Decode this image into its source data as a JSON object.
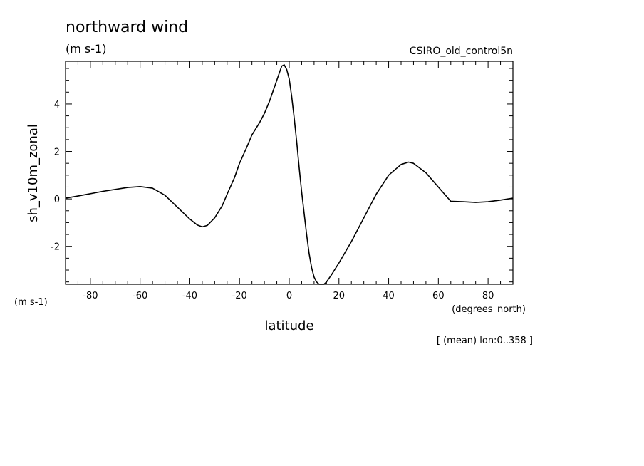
{
  "header": {
    "title": "northward wind",
    "units": "(m s-1)",
    "dataset": "CSIRO_old_control5n"
  },
  "yaxis": {
    "label": "sh_v10m_zonal",
    "units_label": "(m s-1)"
  },
  "xaxis": {
    "label": "latitude",
    "units_label": "(degrees_north)"
  },
  "footnote": "[ (mean) lon:0..358 ]",
  "chart_data": {
    "type": "line",
    "title": "northward wind",
    "xlabel": "latitude",
    "ylabel": "sh_v10m_zonal",
    "xlim": [
      -90,
      90
    ],
    "ylim": [
      -3.6,
      5.8
    ],
    "xticks": [
      -80,
      -60,
      -40,
      -20,
      0,
      20,
      40,
      60,
      80
    ],
    "yticks": [
      -2,
      0,
      2,
      4
    ],
    "xtick_labels": [
      "-80",
      "-60",
      "-40",
      "-20",
      "0",
      "20",
      "40",
      "60",
      "80"
    ],
    "ytick_labels": [
      "-2",
      "0",
      "2",
      "4"
    ],
    "grid": false,
    "line_color": "#000000",
    "series": [
      {
        "x": [
          -90,
          -85,
          -80,
          -75,
          -70,
          -65,
          -60,
          -55,
          -50,
          -45,
          -40,
          -37,
          -35,
          -33,
          -30,
          -27,
          -25,
          -22,
          -20,
          -17,
          -15,
          -12,
          -10,
          -8,
          -6,
          -4,
          -3,
          -2,
          -1,
          0,
          1,
          2,
          3,
          4,
          5,
          6,
          7,
          8,
          9,
          10,
          11,
          12,
          13,
          14,
          15,
          17,
          20,
          25,
          30,
          35,
          40,
          45,
          48,
          50,
          55,
          60,
          65,
          70,
          75,
          80,
          85,
          90
        ],
        "y": [
          0.03,
          0.12,
          0.22,
          0.32,
          0.4,
          0.48,
          0.52,
          0.45,
          0.15,
          -0.35,
          -0.85,
          -1.1,
          -1.18,
          -1.12,
          -0.8,
          -0.3,
          0.2,
          0.9,
          1.5,
          2.2,
          2.7,
          3.2,
          3.6,
          4.1,
          4.7,
          5.3,
          5.6,
          5.65,
          5.45,
          5.05,
          4.3,
          3.4,
          2.4,
          1.3,
          0.3,
          -0.6,
          -1.5,
          -2.3,
          -2.9,
          -3.3,
          -3.5,
          -3.6,
          -3.65,
          -3.6,
          -3.5,
          -3.2,
          -2.7,
          -1.8,
          -0.8,
          0.2,
          1.0,
          1.45,
          1.55,
          1.5,
          1.1,
          0.5,
          -0.1,
          -0.12,
          -0.15,
          -0.12,
          -0.05,
          0.03
        ]
      }
    ]
  }
}
